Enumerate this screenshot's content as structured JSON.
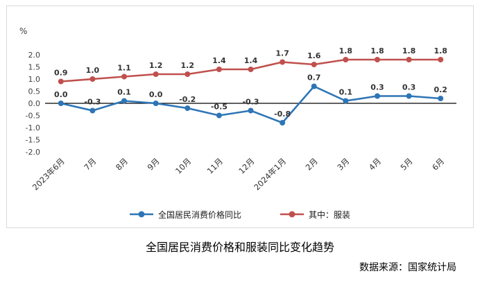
{
  "chart_data": {
    "type": "line",
    "title": "全国居民消费价格和服装同比变化趋势",
    "source": "数据来源：国家统计局",
    "unit_label": "%",
    "categories": [
      "2023年6月",
      "7月",
      "8月",
      "9月",
      "10月",
      "11月",
      "12月",
      "2024年1月",
      "2月",
      "3月",
      "4月",
      "5月",
      "6月"
    ],
    "series": [
      {
        "name": "全国居民消费价格同比",
        "color": "#2E75B6",
        "values": [
          0.0,
          -0.3,
          0.1,
          0.0,
          -0.2,
          -0.5,
          -0.3,
          -0.8,
          0.7,
          0.1,
          0.3,
          0.3,
          0.2
        ]
      },
      {
        "name": "其中：服装",
        "color": "#C0504D",
        "values": [
          0.9,
          1.0,
          1.1,
          1.2,
          1.2,
          1.4,
          1.4,
          1.7,
          1.6,
          1.8,
          1.8,
          1.8,
          1.8
        ]
      }
    ],
    "ylim": [
      -2.0,
      2.0
    ],
    "ytick_step": 0.5,
    "grid": false,
    "legend_position": "bottom",
    "axis_color": "#000000"
  }
}
